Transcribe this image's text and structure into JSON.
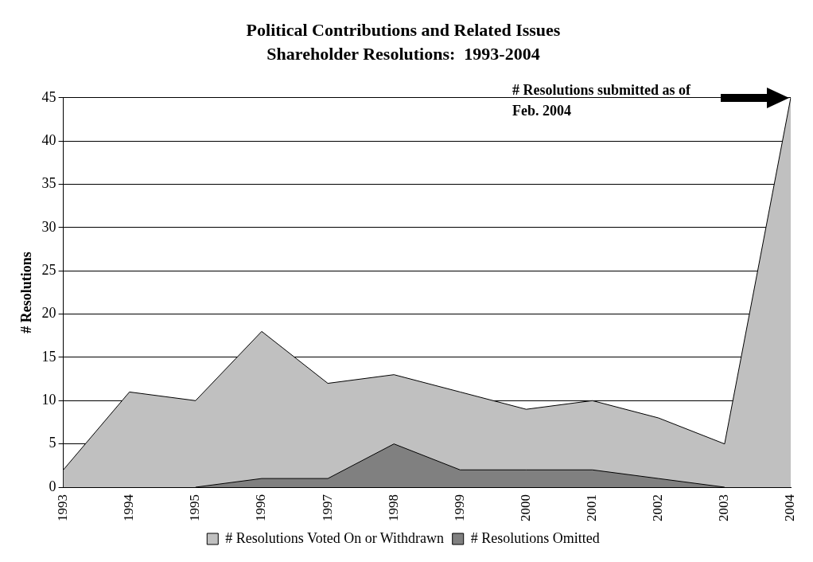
{
  "chart_data": {
    "type": "area",
    "title": "Political Contributions and Related Issues",
    "subtitle": "Shareholder Resolutions:  1993-2004",
    "ylabel": "# Resolutions",
    "categories": [
      "1993",
      "1994",
      "1995",
      "1996",
      "1997",
      "1998",
      "1999",
      "2000",
      "2001",
      "2002",
      "2003",
      "2004"
    ],
    "series": [
      {
        "name": "# Resolutions Voted On or Withdrawn",
        "color": "#c0c0c0",
        "values": [
          2,
          11,
          10,
          18,
          12,
          13,
          11,
          9,
          10,
          8,
          5,
          45
        ]
      },
      {
        "name": "# Resolutions Omitted",
        "color": "#808080",
        "values": [
          null,
          null,
          0,
          1,
          1,
          5,
          2,
          2,
          2,
          1,
          0,
          null
        ]
      }
    ],
    "ylim": [
      0,
      45
    ],
    "yticks": [
      0,
      5,
      10,
      15,
      20,
      25,
      30,
      35,
      40,
      45
    ],
    "grid": "y",
    "legend": "bottom",
    "marker": "none",
    "annotations": [
      "# Resolutions submitted as of Feb. 2004"
    ]
  }
}
